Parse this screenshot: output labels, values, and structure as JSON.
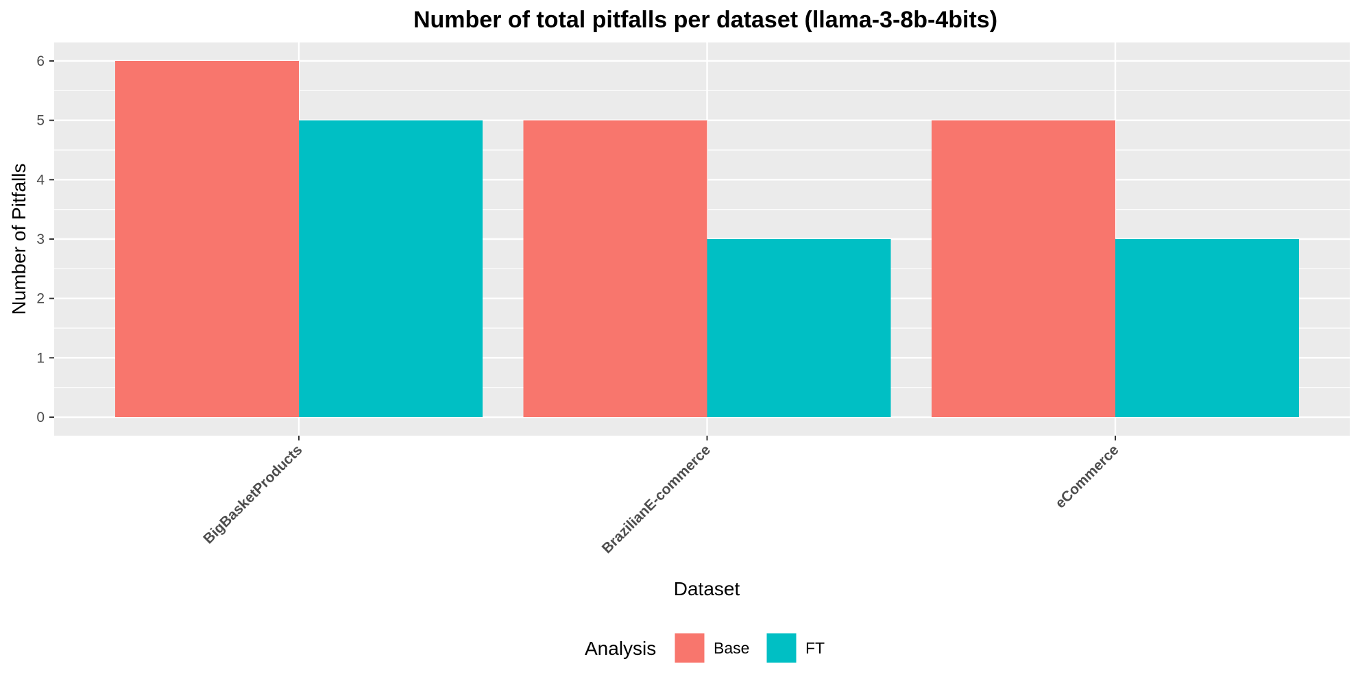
{
  "chart_data": {
    "type": "bar",
    "title": "Number of total pitfalls per dataset (llama-3-8b-4bits)",
    "xlabel": "Dataset",
    "ylabel": "Number of Pitfalls",
    "categories": [
      "BigBasketProducts",
      "BrazilianE-commerce",
      "eCommerce"
    ],
    "series": [
      {
        "name": "Base",
        "values": [
          6,
          5,
          5
        ],
        "color": "#F8766D"
      },
      {
        "name": "FT",
        "values": [
          5,
          3,
          3
        ],
        "color": "#00BFC4"
      }
    ],
    "ylim": [
      0,
      6.3
    ],
    "yticks": [
      0,
      1,
      2,
      3,
      4,
      5,
      6
    ],
    "grid": true,
    "legend": {
      "title": "Analysis",
      "position": "bottom"
    },
    "panel_color": "#EBEBEB",
    "grid_color": "#FFFFFF"
  }
}
